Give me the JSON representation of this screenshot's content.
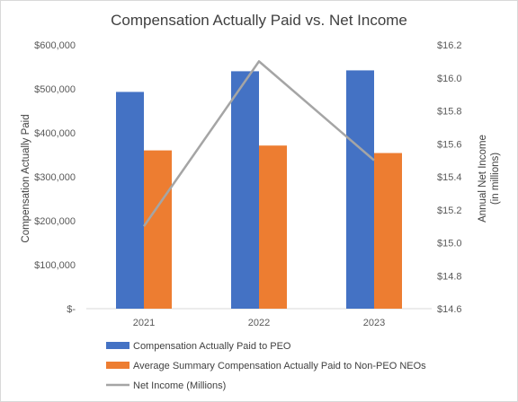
{
  "chart_data": {
    "type": "bar",
    "title": "Compensation Actually Paid vs. Net Income",
    "categories": [
      "2021",
      "2022",
      "2023"
    ],
    "series": [
      {
        "name": "Compensation Actually Paid to PEO",
        "type": "bar",
        "axis": "left",
        "color": "#4472C4",
        "values": [
          493000,
          540000,
          542000
        ]
      },
      {
        "name": "Average Summary Compensation Actually Paid to Non-PEO NEOs",
        "type": "bar",
        "axis": "left",
        "color": "#ED7D31",
        "values": [
          360000,
          371000,
          354000
        ]
      },
      {
        "name": "Net Income (Millions)",
        "type": "line",
        "axis": "right",
        "color": "#A5A5A5",
        "values": [
          15.1,
          16.1,
          15.5
        ]
      }
    ],
    "ylabel": "Compensation Actually Paid",
    "ylim": [
      0,
      600000
    ],
    "yticks": [
      0,
      100000,
      200000,
      300000,
      400000,
      500000,
      600000
    ],
    "ytick_labels": [
      "$-",
      "$100,000",
      "$200,000",
      "$300,000",
      "$400,000",
      "$500,000",
      "$600,000"
    ],
    "y2label_line1": "Annual Net Income",
    "y2label_line2": "(in millions)",
    "y2lim": [
      14.6,
      16.2
    ],
    "y2ticks": [
      14.6,
      14.8,
      15.0,
      15.2,
      15.4,
      15.6,
      15.8,
      16.0,
      16.2
    ],
    "y2tick_labels": [
      "$14.6",
      "$14.8",
      "$15.0",
      "$15.2",
      "$15.4",
      "$15.6",
      "$15.8",
      "$16.0",
      "$16.2"
    ],
    "grid": false,
    "legend_position": "bottom"
  }
}
